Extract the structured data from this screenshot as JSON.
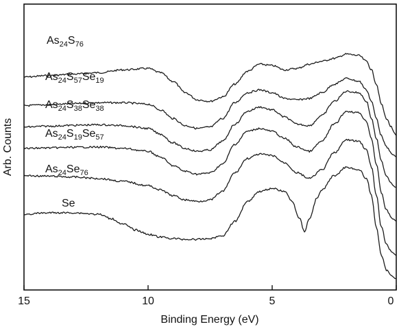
{
  "chart_data": {
    "type": "line",
    "xlabel": "Binding Energy (eV)",
    "ylabel": "Arb. Counts",
    "xlim": [
      15,
      0
    ],
    "x_reversed": true,
    "y_ticks_shown": false,
    "x_ticks": [
      "15",
      "10",
      "5",
      "0"
    ],
    "grid": false,
    "series": [
      {
        "name": "As24S76",
        "label_parts": [
          [
            "As",
            ""
          ],
          [
            "24",
            "sub"
          ],
          [
            "S",
            ""
          ],
          [
            "76",
            "sub"
          ]
        ],
        "x": [
          15,
          14,
          13,
          12,
          11,
          10,
          9.5,
          9,
          8.5,
          8,
          7.5,
          7,
          6.5,
          6,
          5.5,
          5,
          4.5,
          4,
          3.5,
          3,
          2.5,
          2,
          1.5,
          1.2,
          1,
          0.8,
          0.6,
          0.4,
          0.2,
          0.1,
          0
        ],
        "y": [
          0.745,
          0.75,
          0.755,
          0.76,
          0.77,
          0.775,
          0.76,
          0.73,
          0.69,
          0.665,
          0.66,
          0.675,
          0.72,
          0.765,
          0.79,
          0.785,
          0.77,
          0.775,
          0.79,
          0.8,
          0.81,
          0.825,
          0.82,
          0.8,
          0.77,
          0.72,
          0.65,
          0.6,
          0.57,
          0.55,
          0.54
        ]
      },
      {
        "name": "As24S57Se19",
        "label_parts": [
          [
            "As",
            ""
          ],
          [
            "24",
            "sub"
          ],
          [
            "S",
            ""
          ],
          [
            "57",
            "sub"
          ],
          [
            "Se",
            ""
          ],
          [
            "19",
            "sub"
          ]
        ],
        "x": [
          15,
          14,
          13,
          12,
          11,
          10,
          9.5,
          9,
          8.5,
          8,
          7.5,
          7,
          6.5,
          6,
          5.5,
          5,
          4.5,
          4,
          3.5,
          3,
          2.5,
          2,
          1.5,
          1.2,
          1,
          0.8,
          0.6,
          0.4,
          0.2,
          0.1,
          0
        ],
        "y": [
          0.645,
          0.648,
          0.652,
          0.655,
          0.655,
          0.65,
          0.63,
          0.6,
          0.575,
          0.565,
          0.57,
          0.6,
          0.655,
          0.69,
          0.7,
          0.69,
          0.67,
          0.665,
          0.67,
          0.69,
          0.72,
          0.74,
          0.73,
          0.7,
          0.66,
          0.6,
          0.54,
          0.5,
          0.48,
          0.47,
          0.465
        ]
      },
      {
        "name": "As24S38Se38",
        "label_parts": [
          [
            "As",
            ""
          ],
          [
            "24",
            "sub"
          ],
          [
            "S",
            ""
          ],
          [
            "38",
            "sub"
          ],
          [
            "Se",
            ""
          ],
          [
            "38",
            "sub"
          ]
        ],
        "x": [
          15,
          14,
          13,
          12,
          11,
          10,
          9.5,
          9,
          8.5,
          8,
          7.5,
          7,
          6.5,
          6,
          5.5,
          5,
          4.5,
          4,
          3.5,
          3,
          2.5,
          2,
          1.5,
          1.2,
          1,
          0.8,
          0.6,
          0.4,
          0.2,
          0.1,
          0
        ],
        "y": [
          0.57,
          0.573,
          0.576,
          0.578,
          0.575,
          0.565,
          0.545,
          0.515,
          0.495,
          0.485,
          0.49,
          0.52,
          0.58,
          0.625,
          0.64,
          0.63,
          0.605,
          0.58,
          0.575,
          0.61,
          0.66,
          0.695,
          0.69,
          0.66,
          0.6,
          0.53,
          0.45,
          0.4,
          0.375,
          0.365,
          0.36
        ]
      },
      {
        "name": "As24S19Se57",
        "label_parts": [
          [
            "As",
            ""
          ],
          [
            "24",
            "sub"
          ],
          [
            "S",
            ""
          ],
          [
            "19",
            "sub"
          ],
          [
            "Se",
            ""
          ],
          [
            "57",
            "sub"
          ]
        ],
        "x": [
          15,
          14,
          13,
          12,
          11,
          10,
          9.5,
          9,
          8.5,
          8,
          7.5,
          7,
          6.5,
          6,
          5.5,
          5,
          4.5,
          4,
          3.5,
          3,
          2.5,
          2,
          1.5,
          1.2,
          1,
          0.8,
          0.6,
          0.4,
          0.2,
          0.1,
          0
        ],
        "y": [
          0.495,
          0.497,
          0.499,
          0.5,
          0.495,
          0.485,
          0.465,
          0.435,
          0.415,
          0.405,
          0.41,
          0.44,
          0.51,
          0.555,
          0.565,
          0.555,
          0.53,
          0.5,
          0.485,
          0.52,
          0.58,
          0.625,
          0.62,
          0.59,
          0.53,
          0.44,
          0.34,
          0.28,
          0.255,
          0.245,
          0.24
        ]
      },
      {
        "name": "As24Se76",
        "label_parts": [
          [
            "As",
            ""
          ],
          [
            "24",
            "sub"
          ],
          [
            "Se",
            ""
          ],
          [
            "76",
            "sub"
          ]
        ],
        "x": [
          15,
          14,
          13,
          12,
          11,
          10,
          9.5,
          9,
          8.5,
          8,
          7.5,
          7,
          6.5,
          6,
          5.5,
          5,
          4.5,
          4,
          3.5,
          3,
          2.5,
          2,
          1.5,
          1.2,
          1,
          0.8,
          0.6,
          0.4,
          0.2,
          0.1,
          0
        ],
        "y": [
          0.4,
          0.398,
          0.395,
          0.39,
          0.38,
          0.365,
          0.35,
          0.33,
          0.315,
          0.31,
          0.315,
          0.345,
          0.41,
          0.46,
          0.475,
          0.47,
          0.445,
          0.41,
          0.39,
          0.42,
          0.48,
          0.525,
          0.52,
          0.49,
          0.43,
          0.33,
          0.22,
          0.16,
          0.135,
          0.125,
          0.12
        ]
      },
      {
        "name": "Se",
        "label_parts": [
          [
            "Se",
            ""
          ]
        ],
        "x": [
          15,
          14,
          13,
          12,
          11.5,
          11,
          10.5,
          10,
          9.5,
          9,
          8.5,
          8,
          7.5,
          7,
          6.5,
          6,
          5.5,
          5,
          4.5,
          4.2,
          3.9,
          3.7,
          3.5,
          3.2,
          3,
          2.5,
          2,
          1.5,
          1.2,
          1,
          0.8,
          0.6,
          0.4,
          0.2,
          0.1,
          0
        ],
        "y": [
          0.265,
          0.27,
          0.27,
          0.265,
          0.25,
          0.23,
          0.21,
          0.195,
          0.185,
          0.18,
          0.177,
          0.177,
          0.18,
          0.19,
          0.24,
          0.31,
          0.345,
          0.355,
          0.345,
          0.31,
          0.25,
          0.205,
          0.25,
          0.32,
          0.35,
          0.4,
          0.43,
          0.42,
          0.39,
          0.33,
          0.22,
          0.12,
          0.07,
          0.05,
          0.045,
          0.04
        ]
      }
    ]
  }
}
